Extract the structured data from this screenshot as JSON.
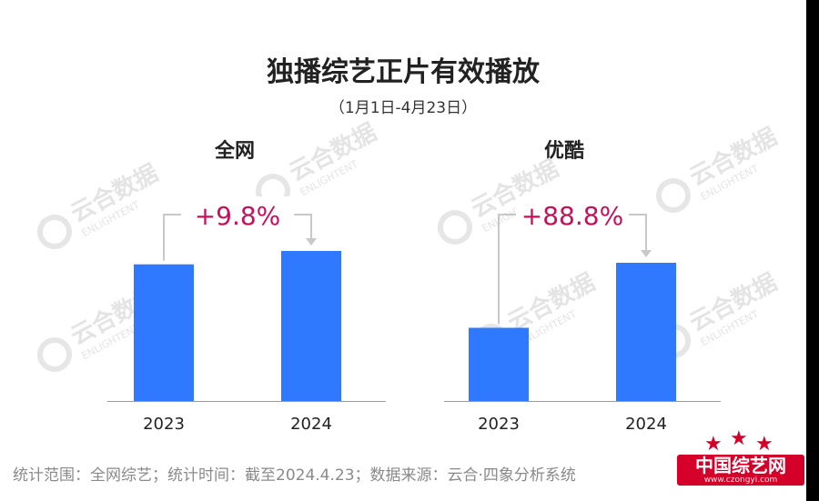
{
  "header": {
    "title": "独播综艺正片有效播放",
    "subtitle": "（1月1日-4月23日）"
  },
  "watermark": {
    "cn": "云合数据",
    "en": "ENLIGHTENT"
  },
  "colors": {
    "bar": "#2e79ff",
    "growth": "#c8105a",
    "arrow": "#c8c8c8"
  },
  "chart_data": [
    {
      "type": "bar",
      "title": "全网",
      "categories": [
        "2023",
        "2024"
      ],
      "values": [
        100,
        109.8
      ],
      "growth_label": "+9.8%",
      "ylim": [
        0,
        110
      ]
    },
    {
      "type": "bar",
      "title": "优酷",
      "categories": [
        "2023",
        "2024"
      ],
      "values": [
        100,
        188.8
      ],
      "growth_label": "+88.8%",
      "ylim": [
        0,
        190
      ]
    }
  ],
  "footer": {
    "note": "统计范围：全网综艺；统计时间：截至2024.4.23；数据来源：云合·四象分析系统"
  },
  "brand": {
    "name": "中国综艺网",
    "url": "www.czongyi.com"
  }
}
